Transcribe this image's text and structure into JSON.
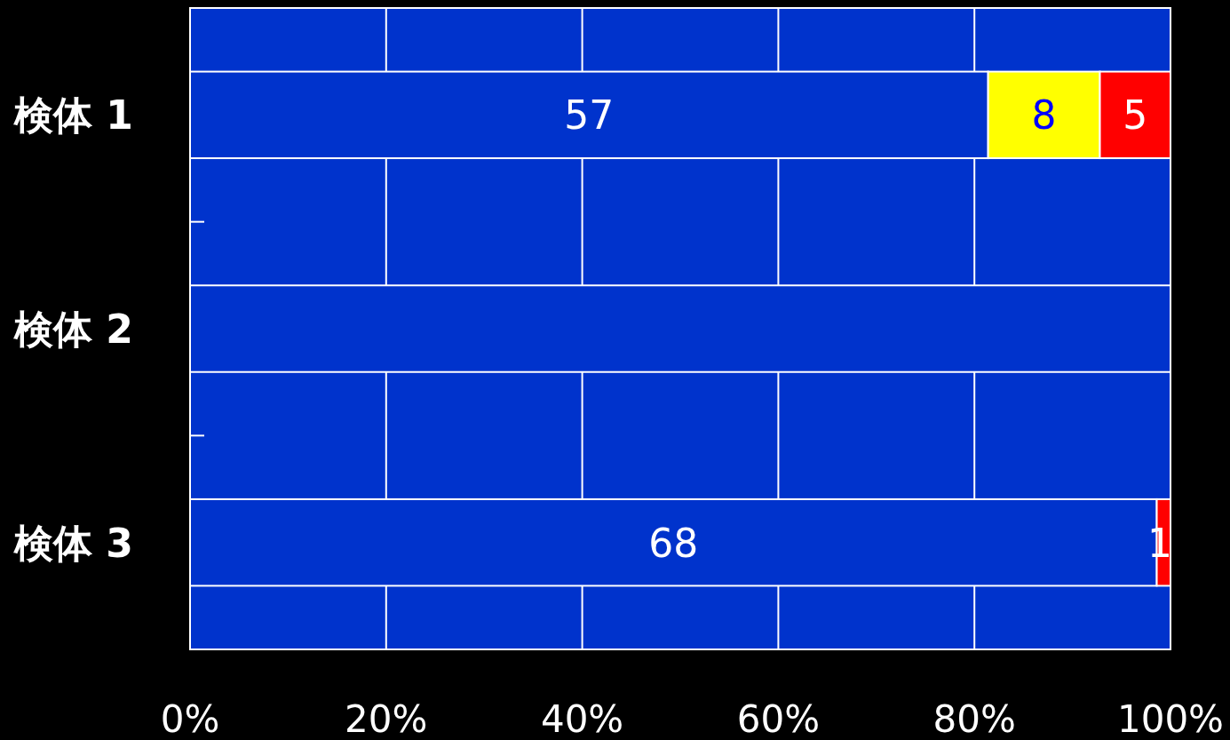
{
  "chart_data": {
    "type": "bar",
    "orientation": "horizontal",
    "stacked": true,
    "categories": [
      "検体 1",
      "検体 2",
      "検体 3"
    ],
    "series": [
      {
        "color": "#0033cc",
        "values": [
          81.4,
          100,
          98.6
        ]
      },
      {
        "color": "#ffff00",
        "values": [
          11.4,
          0,
          0
        ]
      },
      {
        "color": "#ff0000",
        "values": [
          7.2,
          0,
          1.4
        ]
      }
    ],
    "xlim": [
      0,
      100
    ],
    "xticks": [
      {
        "value": 0,
        "label": "0%"
      },
      {
        "value": 20,
        "label": "20%"
      },
      {
        "value": 40,
        "label": "40%"
      },
      {
        "value": 60,
        "label": "60%"
      },
      {
        "value": 80,
        "label": "80%"
      },
      {
        "value": 100,
        "label": "100%"
      }
    ],
    "grid": "x",
    "value_labels": [
      [
        "57",
        null,
        "68"
      ],
      [
        "8",
        null,
        null
      ],
      [
        "5",
        null,
        "1"
      ]
    ]
  }
}
